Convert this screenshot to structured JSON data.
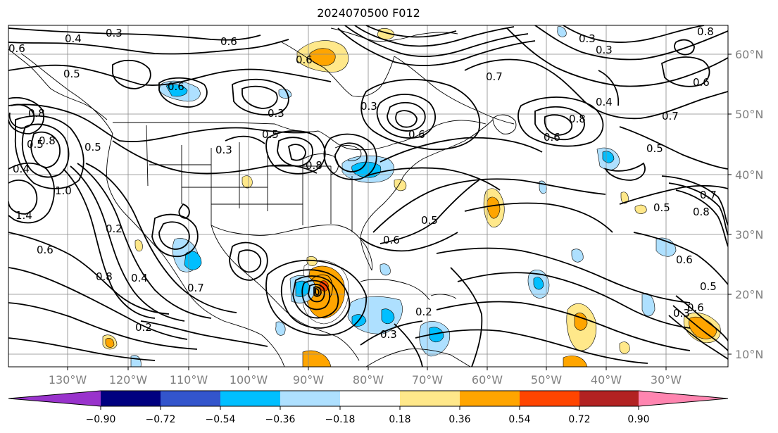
{
  "title": "2024070500 F012",
  "lon_labels": [
    "130°W",
    "120°W",
    "110°W",
    "100°W",
    "90°W",
    "80°W",
    "70°W",
    "60°W",
    "50°W",
    "40°W",
    "30°W"
  ],
  "lat_labels": [
    "60°N",
    "50°N",
    "40°N",
    "30°N",
    "20°N",
    "10°N"
  ],
  "colorbar": {
    "colors": [
      "#9933cc",
      "#000080",
      "#3355cc",
      "#00bfff",
      "#aee0ff",
      "#ffffff",
      "#ffe88a",
      "#ffa500",
      "#ff4500",
      "#b22222",
      "#ff85b0"
    ],
    "tick_labels": [
      "−0.90",
      "−0.72",
      "−0.54",
      "−0.36",
      "−0.18",
      "0.18",
      "0.36",
      "0.54",
      "0.72",
      "0.90"
    ]
  },
  "contour_labels": [
    "0.3",
    "0.6",
    "0.4",
    "0.5",
    "0.6",
    "0.3",
    "0.8",
    "0.5",
    "0.8",
    "0.4",
    "0.5",
    "1.0",
    "1.4",
    "0.2",
    "0.6",
    "0.8",
    "0.4",
    "0.2",
    "0.3",
    "0.5",
    "0.3",
    "0.6",
    "0.5",
    "0.6",
    "0.6",
    "0.7",
    "0.4",
    "0.8",
    "0.6",
    "0.3",
    "0.8",
    "0.6",
    "0.7",
    "0.5",
    "0.8",
    "0.5",
    "0.6",
    "0.7",
    "0.6",
    "0.5",
    "0.3",
    "0.3",
    "0.2",
    "0.6",
    "0.7",
    "0.8",
    "0.3"
  ]
}
